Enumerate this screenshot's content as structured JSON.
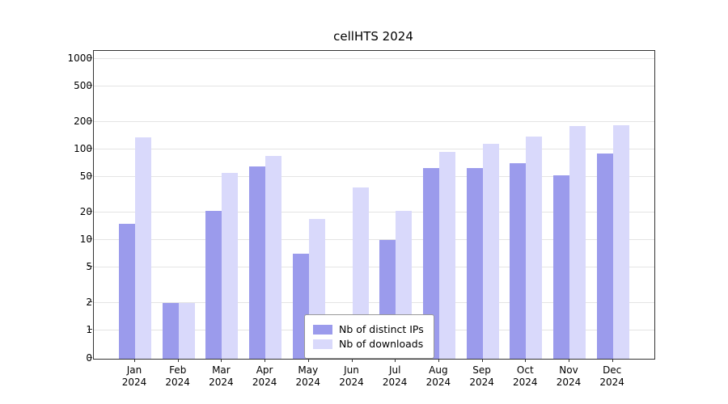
{
  "chart_data": {
    "type": "bar",
    "title": "cellHTS 2024",
    "categories": [
      "Jan",
      "Feb",
      "Mar",
      "Apr",
      "May",
      "Jun",
      "Jul",
      "Aug",
      "Sep",
      "Oct",
      "Nov",
      "Dec"
    ],
    "year_label": "2024",
    "series": [
      {
        "name": "Nb of distinct IPs",
        "color": "#9b9bec",
        "values": [
          15,
          2,
          21,
          65,
          7,
          1,
          10,
          62,
          62,
          70,
          52,
          90
        ]
      },
      {
        "name": "Nb of downloads",
        "color": "#d9d9fb",
        "values": [
          135,
          2,
          55,
          85,
          17,
          38,
          21,
          95,
          115,
          140,
          180,
          185
        ]
      }
    ],
    "yticks": [
      0,
      1,
      2,
      5,
      10,
      20,
      50,
      100,
      200,
      500,
      1000
    ],
    "xlabel": "",
    "ylabel": "",
    "yscale": "log-with-zero",
    "ylim": [
      0,
      1000
    ],
    "grid": "horizontal",
    "legend_position": "bottom-center",
    "gridline_color": "#e4e4e4",
    "axis_color": "#333333",
    "background_color": "#ffffff"
  }
}
